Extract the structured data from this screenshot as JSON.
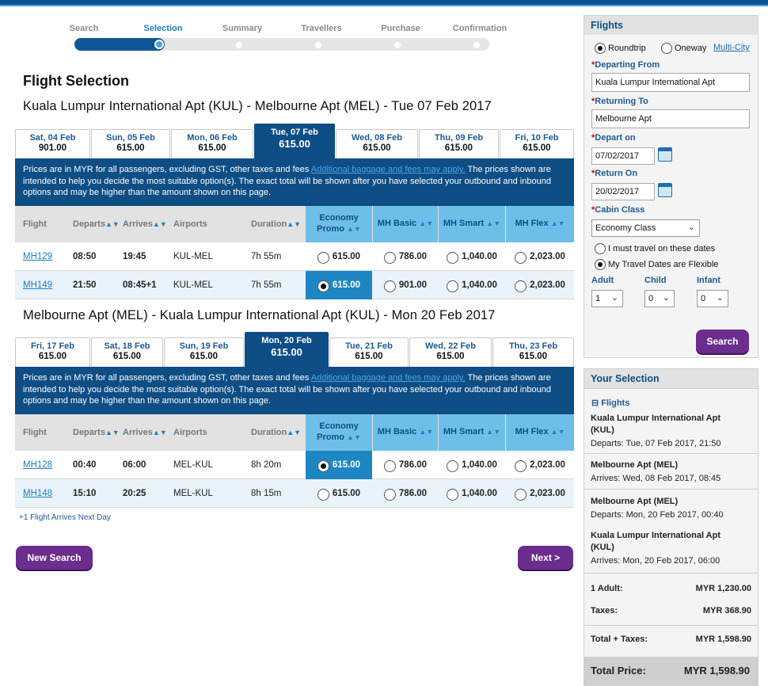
{
  "progress": {
    "steps": [
      "Search",
      "Selection",
      "Summary",
      "Travellers",
      "Purchase",
      "Confirmation"
    ],
    "current_index": 1
  },
  "heading": "Flight Selection",
  "outbound": {
    "route": "Kuala Lumpur International Apt (KUL) - Melbourne Apt (MEL) - Tue 07 Feb 2017",
    "tabs": [
      {
        "date": "Sat, 04 Feb",
        "price": "901.00"
      },
      {
        "date": "Sun, 05 Feb",
        "price": "615.00"
      },
      {
        "date": "Mon, 06 Feb",
        "price": "615.00"
      },
      {
        "date": "Tue, 07 Feb",
        "price": "615.00",
        "selected": true
      },
      {
        "date": "Wed, 08 Feb",
        "price": "615.00"
      },
      {
        "date": "Thu, 09 Feb",
        "price": "615.00"
      },
      {
        "date": "Fri, 10 Feb",
        "price": "615.00"
      }
    ],
    "note_text": "Prices are in MYR for all passengers, excluding GST, other taxes and fees ",
    "note_link": "Additional baggage and fees may apply.",
    "note_rest": " The prices shown are intended to help you decide the most suitable option(s). The exact total will be shown after you have selected your outbound and inbound options and may be higher than the amount shown on this page.",
    "rows": [
      {
        "flight": "MH129",
        "departs": "08:50",
        "arrives": "19:45",
        "airports": "KUL-MEL",
        "duration": "7h 55m",
        "fares": [
          "615.00",
          "786.00",
          "1,040.00",
          "2,023.00"
        ],
        "selected": -1
      },
      {
        "flight": "MH149",
        "departs": "21:50",
        "arrives": "08:45+1",
        "airports": "KUL-MEL",
        "duration": "7h 55m",
        "fares": [
          "615.00",
          "901.00",
          "1,040.00",
          "2,023.00"
        ],
        "selected": 0
      }
    ]
  },
  "inbound": {
    "route": "Melbourne Apt (MEL) - Kuala Lumpur International Apt (KUL) - Mon 20 Feb 2017",
    "tabs": [
      {
        "date": "Fri, 17 Feb",
        "price": "615.00"
      },
      {
        "date": "Sat, 18 Feb",
        "price": "615.00"
      },
      {
        "date": "Sun, 19 Feb",
        "price": "615.00"
      },
      {
        "date": "Mon, 20 Feb",
        "price": "615.00",
        "selected": true
      },
      {
        "date": "Tue, 21 Feb",
        "price": "615.00"
      },
      {
        "date": "Wed, 22 Feb",
        "price": "615.00"
      },
      {
        "date": "Thu, 23 Feb",
        "price": "615.00"
      }
    ],
    "rows": [
      {
        "flight": "MH128",
        "departs": "00:40",
        "arrives": "06:00",
        "airports": "MEL-KUL",
        "duration": "8h 20m",
        "fares": [
          "615.00",
          "786.00",
          "1,040.00",
          "2,023.00"
        ],
        "selected": 0
      },
      {
        "flight": "MH148",
        "departs": "15:10",
        "arrives": "20:25",
        "airports": "MEL-KUL",
        "duration": "8h 15m",
        "fares": [
          "615.00",
          "786.00",
          "1,040.00",
          "2,023.00"
        ],
        "selected": -1
      }
    ]
  },
  "columns": {
    "flight": "Flight",
    "departs": "Departs",
    "arrives": "Arrives",
    "airports": "Airports",
    "duration": "Duration",
    "economy": "Economy",
    "promo": "Promo",
    "basic": "MH Basic",
    "smart": "MH Smart",
    "flex": "MH Flex"
  },
  "next_day_note": "+1   Flight Arrives Next Day",
  "buttons": {
    "new_search": "New Search",
    "next": "Next >"
  },
  "search_panel": {
    "title": "Flights",
    "trip_types": [
      "Roundtrip",
      "Oneway"
    ],
    "multi_city": "Multi-City",
    "departing_label": "Departing From",
    "departing_value": "Kuala Lumpur International Apt",
    "returning_label": "Returning To",
    "returning_value": "Melbourne Apt",
    "depart_label": "Depart on",
    "depart_value": "07/02/2017",
    "return_label": "Return On",
    "return_value": "20/02/2017",
    "cabin_label": "Cabin Class",
    "cabin_value": "Economy Class",
    "flex_options": [
      "I must travel on these dates",
      "My Travel Dates are Flexible"
    ],
    "adult_label": "Adult",
    "child_label": "Child",
    "infant_label": "Infant",
    "adult_value": "1",
    "child_value": "0",
    "infant_value": "0",
    "search_button": "Search"
  },
  "selection_panel": {
    "title": "Your Selection",
    "flights_label": "Flights",
    "segments": [
      {
        "place": "Kuala Lumpur International Apt (KUL)",
        "label": "Departs:",
        "time": "Tue, 07 Feb 2017, 21:50"
      },
      {
        "place": "Melbourne Apt (MEL)",
        "label": "Arrives:",
        "time": "Wed, 08 Feb 2017, 08:45"
      },
      {
        "place": "Melbourne Apt (MEL)",
        "label": "Departs:",
        "time": "Mon, 20 Feb 2017, 00:40"
      },
      {
        "place": "Kuala Lumpur International Apt (KUL)",
        "label": "Arrives:",
        "time": "Mon, 20 Feb 2017, 06:00"
      }
    ],
    "adult_label": "1 Adult:",
    "adult_value": "MYR 1,230.00",
    "taxes_label": "Taxes:",
    "taxes_value": "MYR 368.90",
    "total_taxes_label": "Total + Taxes:",
    "total_taxes_value": "MYR 1,598.90",
    "total_price_label": "Total Price:",
    "total_price_value": "MYR 1,598.90"
  },
  "colors": {
    "brand": "#0e4e85",
    "accent": "#1f86c4",
    "fare_header": "#6ebfe8",
    "button": "#6b2d8e"
  }
}
